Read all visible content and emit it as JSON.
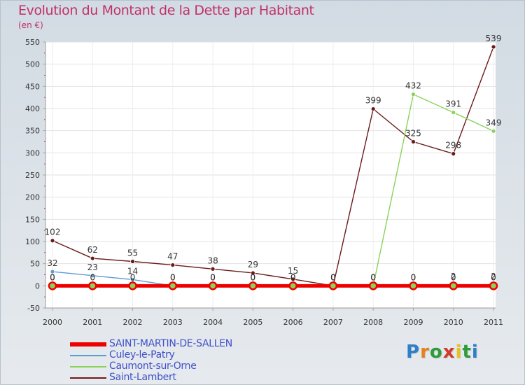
{
  "page": {
    "title": "Evolution du Montant de la Dette par Habitant",
    "unit": "(en €)"
  },
  "logo": {
    "text": "Proxiti",
    "letters": [
      "P",
      "r",
      "o",
      "x",
      "i",
      "t",
      "i"
    ],
    "colors": [
      "#2f7ec8",
      "#e6821e",
      "#2f9b3a",
      "#d23a2a",
      "#e6c21e",
      "#2f9b3a",
      "#2f7ec8"
    ]
  },
  "chart_data": {
    "type": "line",
    "x": [
      "2000",
      "2001",
      "2002",
      "2003",
      "2004",
      "2005",
      "2006",
      "2007",
      "2008",
      "2009",
      "2010",
      "2011"
    ],
    "ylim": [
      -50,
      550
    ],
    "yticks": [
      "-50",
      "0",
      "50",
      "100",
      "150",
      "200",
      "250",
      "300",
      "350",
      "400",
      "450",
      "500",
      "550"
    ],
    "grid": true,
    "legend_position": "bottom-left",
    "series": [
      {
        "name": "SAINT-MARTIN-DE-SALLEN",
        "color": "#ee0000",
        "values": [
          0,
          0,
          0,
          0,
          0,
          0,
          0,
          0,
          0,
          0,
          0,
          0
        ]
      },
      {
        "name": "Culey-le-Patry",
        "color": "#5b9bd0",
        "values": [
          32,
          23,
          14,
          0,
          0,
          0,
          0,
          0,
          0,
          0,
          2,
          2
        ]
      },
      {
        "name": "Caumont-sur-Orne",
        "color": "#8ad25a",
        "values": [
          0,
          0,
          0,
          0,
          0,
          0,
          0,
          0,
          0,
          432,
          391,
          349
        ]
      },
      {
        "name": "Saint-Lambert",
        "color": "#6b1a1a",
        "values": [
          102,
          62,
          55,
          47,
          38,
          29,
          15,
          0,
          399,
          325,
          298,
          539
        ]
      }
    ],
    "value_labels": [
      {
        "series": 1,
        "labels": [
          "32",
          "23",
          "14",
          "0",
          "0",
          "0",
          "0",
          "0",
          "0",
          "0",
          "2",
          "2"
        ]
      },
      {
        "series": 2,
        "labels": [
          "0",
          "",
          "",
          "",
          "",
          "",
          "",
          "0",
          "0",
          "432",
          "391",
          "349"
        ]
      },
      {
        "series": 3,
        "labels": [
          "102",
          "62",
          "55",
          "47",
          "38",
          "29",
          "15",
          "0",
          "399",
          "325",
          "298",
          "539"
        ]
      },
      {
        "series": 0,
        "labels": [
          "0",
          "0",
          "0",
          "0",
          "0",
          "0",
          "0",
          "0",
          "0",
          "0",
          "0",
          "0"
        ]
      }
    ]
  }
}
